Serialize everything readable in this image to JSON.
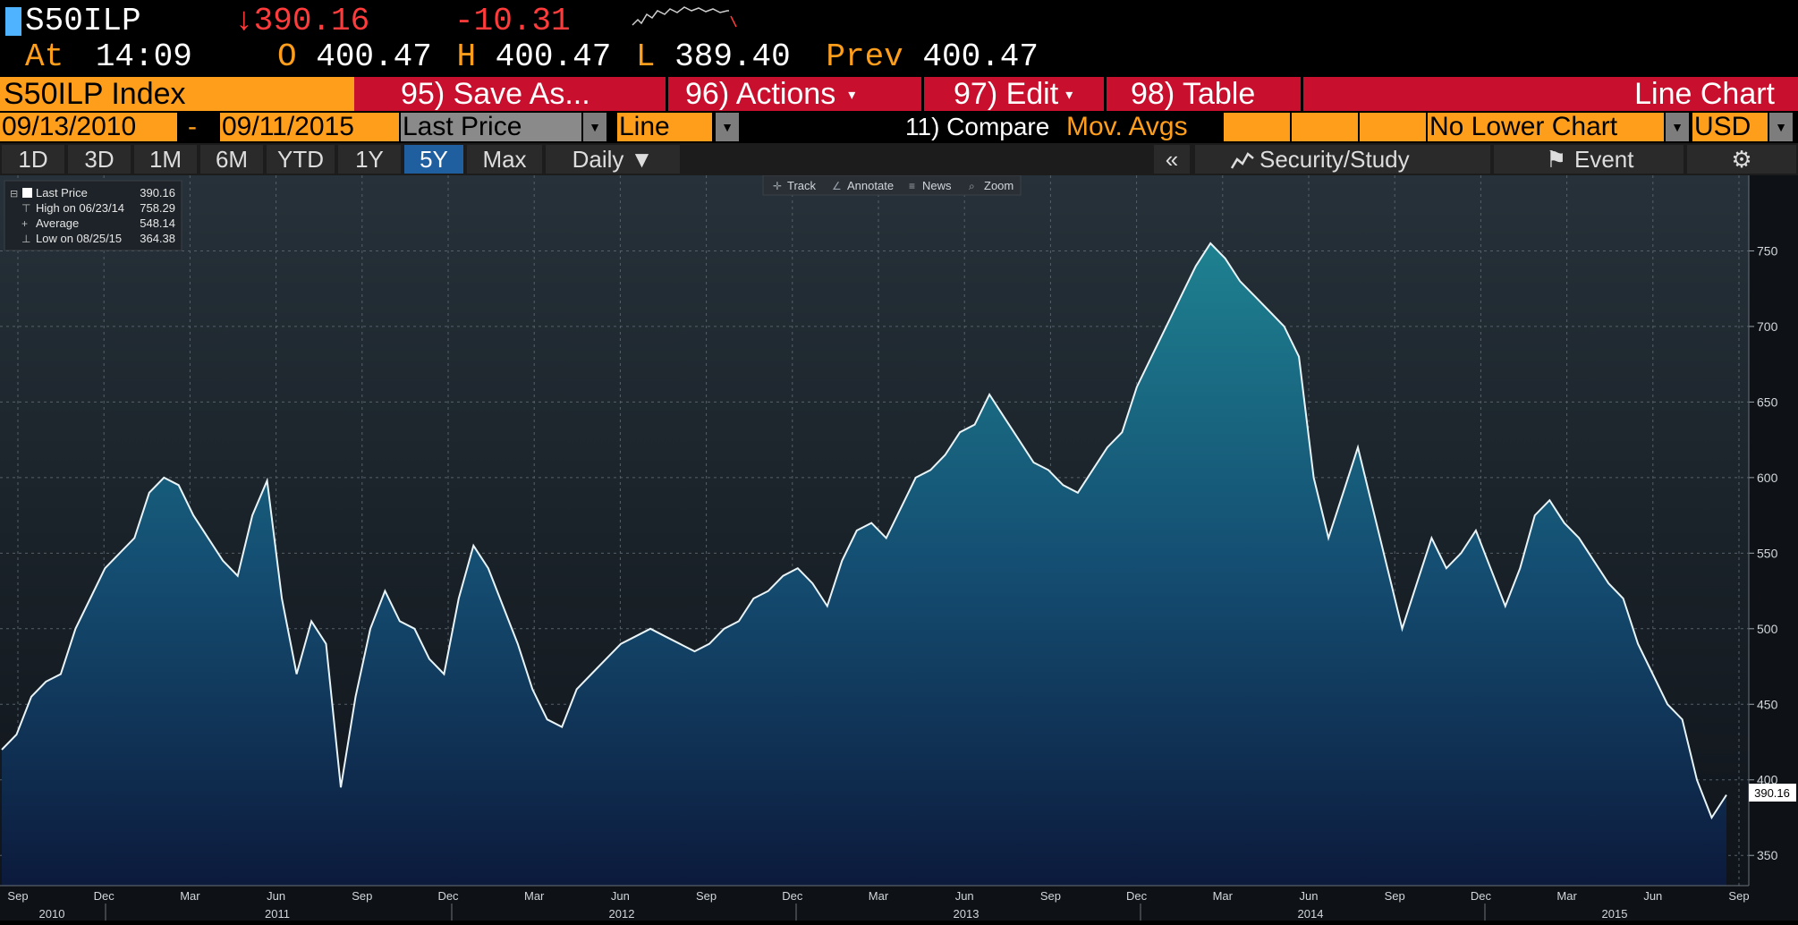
{
  "quote": {
    "ticker": "S50ILP",
    "arrow": "↓",
    "last": "390.16",
    "change": "-10.31",
    "at_label": "At",
    "time": "14:09",
    "open_label": "O",
    "open": "400.47",
    "high_label": "H",
    "high": "400.47",
    "low_label": "L",
    "low": "389.40",
    "prev_label": "Prev",
    "prev": "400.47"
  },
  "funcbar": {
    "index_label": "S50ILP Index",
    "save_as": "95) Save As...",
    "actions": "96) Actions",
    "edit": "97) Edit",
    "table": "98) Table",
    "view": "Line Chart"
  },
  "settings": {
    "start_date": "09/13/2010",
    "dash": "-",
    "end_date": "09/11/2015",
    "field": "Last Price",
    "style": "Line",
    "compare": "11) Compare",
    "mov_avgs": "Mov. Avgs",
    "lower_chart": "No Lower Chart",
    "currency": "USD"
  },
  "ranges": {
    "items": [
      "1D",
      "3D",
      "1M",
      "6M",
      "YTD",
      "1Y",
      "5Y",
      "Max"
    ],
    "active": "5Y",
    "frequency": "Daily ▼",
    "collapse": "«",
    "security_study": "Security/Study",
    "event": "Event",
    "settings_icon": "⚙"
  },
  "tools": {
    "track": "Track",
    "annotate": "Annotate",
    "news": "News",
    "zoom": "Zoom"
  },
  "legend": {
    "last_label": "Last Price",
    "last_value": "390.16",
    "high_label": "High on 06/23/14",
    "high_value": "758.29",
    "avg_label": "Average",
    "avg_value": "548.14",
    "low_label": "Low on 08/25/15",
    "low_value": "364.38"
  },
  "colors": {
    "orange": "#ff9e1b",
    "red_bar": "#c8102e",
    "down": "#ff3b3b",
    "area_top": "#1d7f90",
    "area_bottom": "#0c1b3a",
    "line": "#e8f4f8"
  },
  "chart_data": {
    "type": "area",
    "y_ticks": [
      350,
      400,
      450,
      500,
      550,
      600,
      650,
      700,
      750
    ],
    "ylim": [
      330,
      800
    ],
    "last_value_tag": "390.16",
    "month_ticks": [
      "Sep",
      "Dec",
      "Mar",
      "Jun",
      "Sep",
      "Dec",
      "Mar",
      "Jun",
      "Sep",
      "Dec",
      "Mar",
      "Jun",
      "Sep",
      "Dec",
      "Mar",
      "Jun",
      "Sep",
      "Dec",
      "Mar",
      "Jun",
      "Sep"
    ],
    "year_labels": [
      "2010",
      "2011",
      "2012",
      "2013",
      "2014",
      "2015"
    ],
    "series": [
      {
        "values": [
          420,
          430,
          455,
          465,
          470,
          500,
          520,
          540,
          550,
          560,
          590,
          600,
          595,
          575,
          560,
          545,
          535,
          575,
          598,
          520,
          470,
          505,
          490,
          395,
          455,
          500,
          525,
          505,
          500,
          480,
          470,
          520,
          555,
          540,
          515,
          490,
          460,
          440,
          435,
          460,
          470,
          480,
          490,
          495,
          500,
          495,
          490,
          485,
          490,
          500,
          505,
          520,
          525,
          535,
          540,
          530,
          515,
          545,
          565,
          570,
          560,
          580,
          600,
          605,
          615,
          630,
          635,
          655,
          640,
          625,
          610,
          605,
          595,
          590,
          605,
          620,
          630,
          660,
          680,
          700,
          720,
          740,
          755,
          745,
          730,
          720,
          710,
          700,
          680,
          600,
          560,
          590,
          620,
          580,
          540,
          500,
          530,
          560,
          540,
          550,
          565,
          540,
          515,
          540,
          575,
          585,
          570,
          560,
          545,
          530,
          520,
          490,
          470,
          450,
          440,
          400,
          375,
          390
        ]
      }
    ]
  }
}
